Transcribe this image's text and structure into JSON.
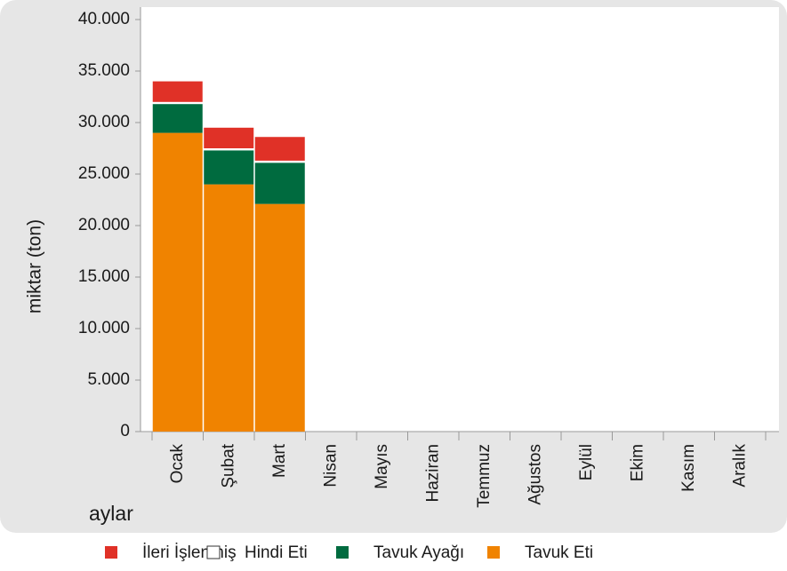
{
  "chart_data": {
    "type": "stacked_bar",
    "ylabel": "miktar (ton)",
    "xlabel": "aylar",
    "categories": [
      "Ocak",
      "Şubat",
      "Mart",
      "Nisan",
      "Mayıs",
      "Haziran",
      "Temmuz",
      "Ağustos",
      "Eylül",
      "Ekim",
      "Kasım",
      "Aralık"
    ],
    "series": [
      {
        "name": "İleri İşlenmiş",
        "color": "#e03127",
        "values": [
          2000,
          2000,
          2300,
          null,
          null,
          null,
          null,
          null,
          null,
          null,
          null,
          null
        ]
      },
      {
        "name": "Hindi Eti",
        "color": "#ffffff",
        "values": [
          200,
          200,
          200,
          null,
          null,
          null,
          null,
          null,
          null,
          null,
          null,
          null
        ]
      },
      {
        "name": "Tavuk Ayağı",
        "color": "#006b3f",
        "values": [
          2800,
          3300,
          4000,
          null,
          null,
          null,
          null,
          null,
          null,
          null,
          null,
          null
        ]
      },
      {
        "name": "Tavuk Eti",
        "color": "#f08300",
        "values": [
          29000,
          24000,
          22100,
          null,
          null,
          null,
          null,
          null,
          null,
          null,
          null,
          null
        ]
      }
    ],
    "ylim": [
      0,
      40000
    ],
    "yticks": [
      0,
      {
        "value": 5000,
        "label": "5.000"
      },
      {
        "value": 10000,
        "label": "10.000"
      },
      {
        "value": 15000,
        "label": "15.000"
      },
      {
        "value": 20000,
        "label": "20.000"
      },
      {
        "value": 25000,
        "label": "25.000"
      },
      {
        "value": 30000,
        "label": "30.000"
      },
      {
        "value": 35000,
        "label": "35.000"
      },
      {
        "value": 40000,
        "label": "40.000"
      }
    ]
  }
}
